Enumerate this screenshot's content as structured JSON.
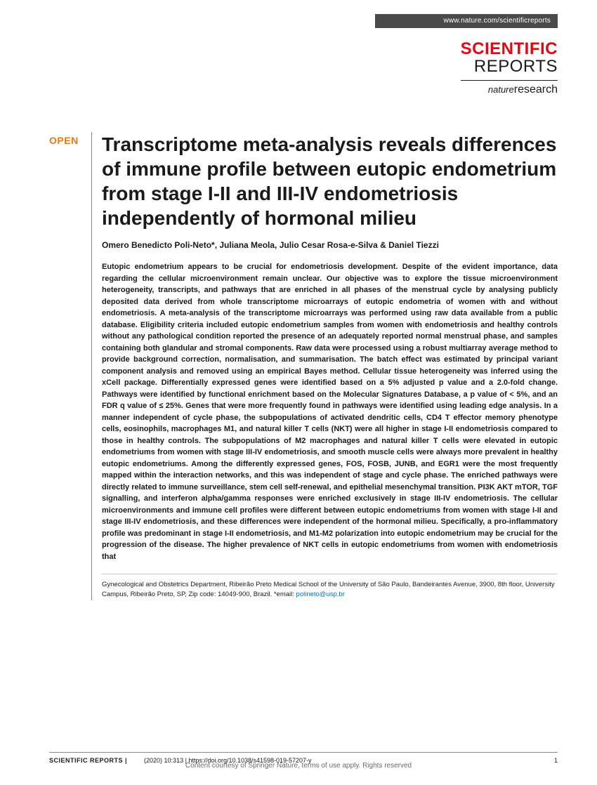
{
  "header": {
    "url": "www.nature.com/scientificreports",
    "brand_line1": "SCIENTIFIC",
    "brand_line2": "REPORTS",
    "brand_sub_italic": "nature",
    "brand_sub_plain": "research"
  },
  "badge": {
    "open": "OPEN"
  },
  "article": {
    "title": "Transcriptome meta-analysis reveals differences of immune profile between eutopic endometrium from stage I-II and III-IV endometriosis independently of hormonal milieu",
    "authors": "Omero Benedicto Poli-Neto*, Juliana Meola, Julio Cesar Rosa-e-Silva & Daniel Tiezzi",
    "abstract": "Eutopic endometrium appears to be crucial for endometriosis development. Despite of the evident importance, data regarding the cellular microenvironment remain unclear. Our objective was to explore the tissue microenvironment heterogeneity, transcripts, and pathways that are enriched in all phases of the menstrual cycle by analysing publicly deposited data derived from whole transcriptome microarrays of eutopic endometria of women with and without endometriosis. A meta-analysis of the transcriptome microarrays was performed using raw data available from a public database. Eligibility criteria included eutopic endometrium samples from women with endometriosis and healthy controls without any pathological condition reported the presence of an adequately reported normal menstrual phase, and samples containing both glandular and stromal components. Raw data were processed using a robust multiarray average method to provide background correction, normalisation, and summarisation. The batch effect was estimated by principal variant component analysis and removed using an empirical Bayes method. Cellular tissue heterogeneity was inferred using the xCell package. Differentially expressed genes were identified based on a 5% adjusted p value and a 2.0-fold change. Pathways were identified by functional enrichment based on the Molecular Signatures Database, a p value of < 5%, and an FDR q value of ≤ 25%. Genes that were more frequently found in pathways were identified using leading edge analysis. In a manner independent of cycle phase, the subpopulations of activated dendritic cells, CD4 T effector memory phenotype cells, eosinophils, macrophages M1, and natural killer T cells (NKT) were all higher in stage I-II endometriosis compared to those in healthy controls. The subpopulations of M2 macrophages and natural killer T cells were elevated in eutopic endometriums from women with stage III-IV endometriosis, and smooth muscle cells were always more prevalent in healthy eutopic endometriums. Among the differently expressed genes, FOS, FOSB, JUNB, and EGR1 were the most frequently mapped within the interaction networks, and this was independent of stage and cycle phase. The enriched pathways were directly related to immune surveillance, stem cell self-renewal, and epithelial mesenchymal transition. PI3K AKT mTOR, TGF signalling, and interferon alpha/gamma responses were enriched exclusively in stage III-IV endometriosis. The cellular microenvironments and immune cell profiles were different between eutopic endometriums from women with stage I-II and stage III-IV endometriosis, and these differences were independent of the hormonal milieu. Specifically, a pro-inflammatory profile was predominant in stage I-II endometriosis, and M1-M2 polarization into eutopic endometrium may be crucial for the progression of the disease. The higher prevalence of NKT cells in eutopic endometriums from women with endometriosis that",
    "affiliation": "Gynecological and Obstetrics Department, Ribeirão Preto Medical School of the University of São Paulo, Bandeirantes Avenue, 3900, 8th floor, University Campus, Ribeirão Preto, SP, Zip code: 14049-900, Brazil. *email: ",
    "email": "polineto@usp.br"
  },
  "footer": {
    "journal": "SCIENTIFIC REPORTS |",
    "citation": "(2020) 10:313 | https://doi.org/10.1038/s41598-019-57207-y",
    "page": "1",
    "courtesy": "Content courtesy of Springer Nature, terms of use apply. Rights reserved"
  },
  "colors": {
    "accent_red": "#e30613",
    "accent_orange": "#e67817",
    "link_blue": "#0072c6",
    "text": "#1a1a1a",
    "topbar_bg": "#4a4a4a"
  }
}
